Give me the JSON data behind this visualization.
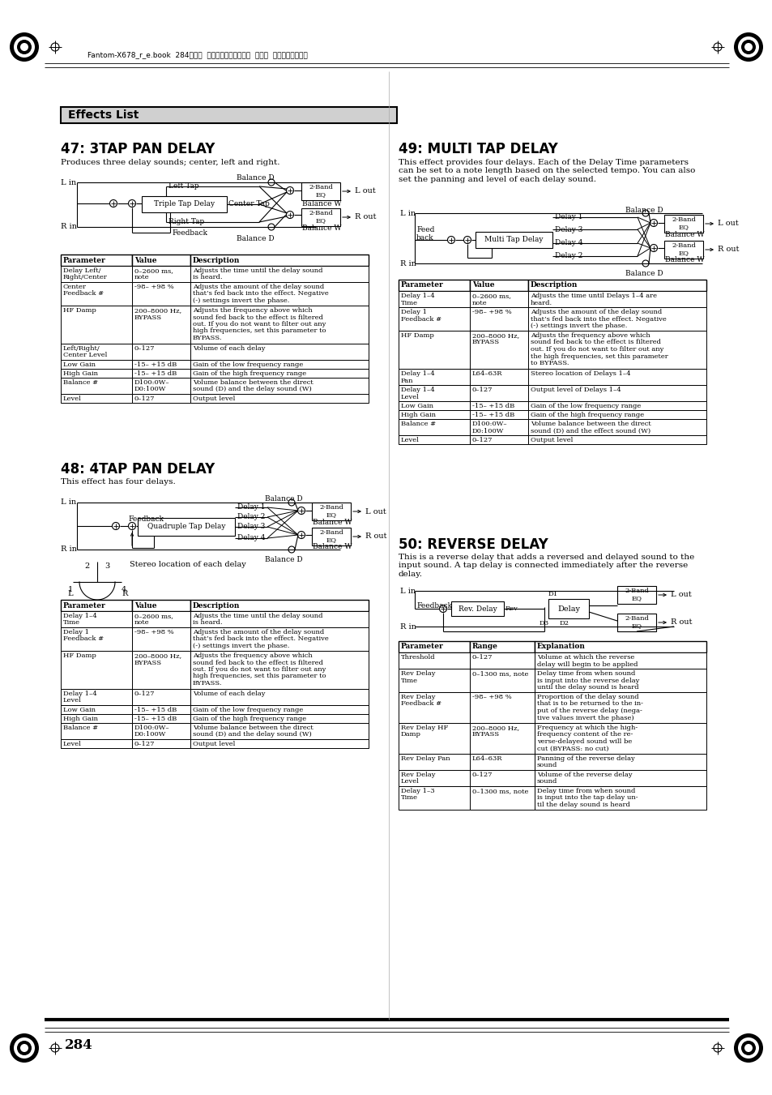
{
  "page_bg": "#ffffff",
  "header_text": "Fantom-X678_r_e.book  284ページ  ２００７年３月２０日  火曜日  午前１０時２０分",
  "footer_page": "284",
  "effects_list_title": "Effects List",
  "sec47_title": "47: 3TAP PAN DELAY",
  "sec47_desc": "Produces three delay sounds; center, left and right.",
  "sec48_title": "48: 4TAP PAN DELAY",
  "sec48_desc": "This effect has four delays.",
  "sec49_title": "49: MULTI TAP DELAY",
  "sec49_desc": "This effect provides four delays. Each of the Delay Time parameters\ncan be set to a note length based on the selected tempo. You can also\nset the panning and level of each delay sound.",
  "sec50_title": "50: REVERSE DELAY",
  "sec50_desc": "This is a reverse delay that adds a reversed and delayed sound to the\ninput sound. A tap delay is connected immediately after the reverse\ndelay.",
  "table47_headers": [
    "Parameter",
    "Value",
    "Description"
  ],
  "table47_rows": [
    [
      "Delay Left/\nRight/Center",
      "0–2600 ms,\nnote",
      "Adjusts the time until the delay sound\nis heard."
    ],
    [
      "Center\nFeedback #",
      "-98– +98 %",
      "Adjusts the amount of the delay sound\nthat’s fed back into the effect. Negative\n(-) settings invert the phase."
    ],
    [
      "HF Damp",
      "200–8000 Hz,\nBYPASS",
      "Adjusts the frequency above which\nsound fed back to the effect is filtered\nout. If you do not want to filter out any\nhigh frequencies, set this parameter to\nBYPASS."
    ],
    [
      "Left/Right/\nCenter Level",
      "0–127",
      "Volume of each delay"
    ],
    [
      "Low Gain",
      "-15– +15 dB",
      "Gain of the low frequency range"
    ],
    [
      "High Gain",
      "-15– +15 dB",
      "Gain of the high frequency range"
    ],
    [
      "Balance #",
      "D100:0W–\nD0:100W",
      "Volume balance between the direct\nsound (D) and the delay sound (W)"
    ],
    [
      "Level",
      "0–127",
      "Output level"
    ]
  ],
  "table48_headers": [
    "Parameter",
    "Value",
    "Description"
  ],
  "table48_rows": [
    [
      "Delay 1–4\nTime",
      "0–2600 ms,\nnote",
      "Adjusts the time until the delay sound\nis heard."
    ],
    [
      "Delay 1\nFeedback #",
      "-98– +98 %",
      "Adjusts the amount of the delay sound\nthat’s fed back into the effect. Negative\n(-) settings invert the phase."
    ],
    [
      "HF Damp",
      "200–8000 Hz,\nBYPASS",
      "Adjusts the frequency above which\nsound fed back to the effect is filtered\nout. If you do not want to filter out any\nhigh frequencies, set this parameter to\nBYPASS."
    ],
    [
      "Delay 1–4\nLevel",
      "0–127",
      "Volume of each delay"
    ],
    [
      "Low Gain",
      "-15– +15 dB",
      "Gain of the low frequency range"
    ],
    [
      "High Gain",
      "-15– +15 dB",
      "Gain of the high frequency range"
    ],
    [
      "Balance #",
      "D100:0W–\nD0:100W",
      "Volume balance between the direct\nsound (D) and the delay sound (W)"
    ],
    [
      "Level",
      "0–127",
      "Output level"
    ]
  ],
  "table49_headers": [
    "Parameter",
    "Value",
    "Description"
  ],
  "table49_rows": [
    [
      "Delay 1–4\nTime",
      "0–2600 ms,\nnote",
      "Adjusts the time until Delays 1–4 are\nheard."
    ],
    [
      "Delay 1\nFeedback #",
      "-98– +98 %",
      "Adjusts the amount of the delay sound\nthat’s fed back into the effect. Negative\n(-) settings invert the phase."
    ],
    [
      "HF Damp",
      "200–8000 Hz,\nBYPASS",
      "Adjusts the frequency above which\nsound fed back to the effect is filtered\nout. If you do not want to filter out any\nthe high frequencies, set this parameter\nto BYPASS."
    ],
    [
      "Delay 1–4\nPan",
      "L64–63R",
      "Stereo location of Delays 1–4"
    ],
    [
      "Delay 1–4\nLevel",
      "0–127",
      "Output level of Delays 1–4"
    ],
    [
      "Low Gain",
      "-15– +15 dB",
      "Gain of the low frequency range"
    ],
    [
      "High Gain",
      "-15– +15 dB",
      "Gain of the high frequency range"
    ],
    [
      "Balance #",
      "D100:0W–\nD0:100W",
      "Volume balance between the direct\nsound (D) and the effect sound (W)"
    ],
    [
      "Level",
      "0–127",
      "Output level"
    ]
  ],
  "table50_headers": [
    "Parameter",
    "Range",
    "Explanation"
  ],
  "table50_rows": [
    [
      "Threshold",
      "0–127",
      "Volume at which the reverse\ndelay will begin to be applied"
    ],
    [
      "Rev Delay\nTime",
      "0–1300 ms, note",
      "Delay time from when sound\nis input into the reverse delay\nuntil the delay sound is heard"
    ],
    [
      "Rev Delay\nFeedback #",
      "-98– +98 %",
      "Proportion of the delay sound\nthat is to be returned to the in-\nput of the reverse delay (nega-\ntive values invert the phase)"
    ],
    [
      "Rev Delay HF\nDamp",
      "200–8000 Hz,\nBYPASS",
      "Frequency at which the high-\nfrequency content of the re-\nverse-delayed sound will be\ncut (BYPASS: no cut)"
    ],
    [
      "Rev Delay Pan",
      "L64–63R",
      "Panning of the reverse delay\nsound"
    ],
    [
      "Rev Delay\nLevel",
      "0–127",
      "Volume of the reverse delay\nsound"
    ],
    [
      "Delay 1–3\nTime",
      "0–1300 ms, note",
      "Delay time from when sound\nis input into the tap delay un-\ntil the delay sound is heard"
    ]
  ]
}
